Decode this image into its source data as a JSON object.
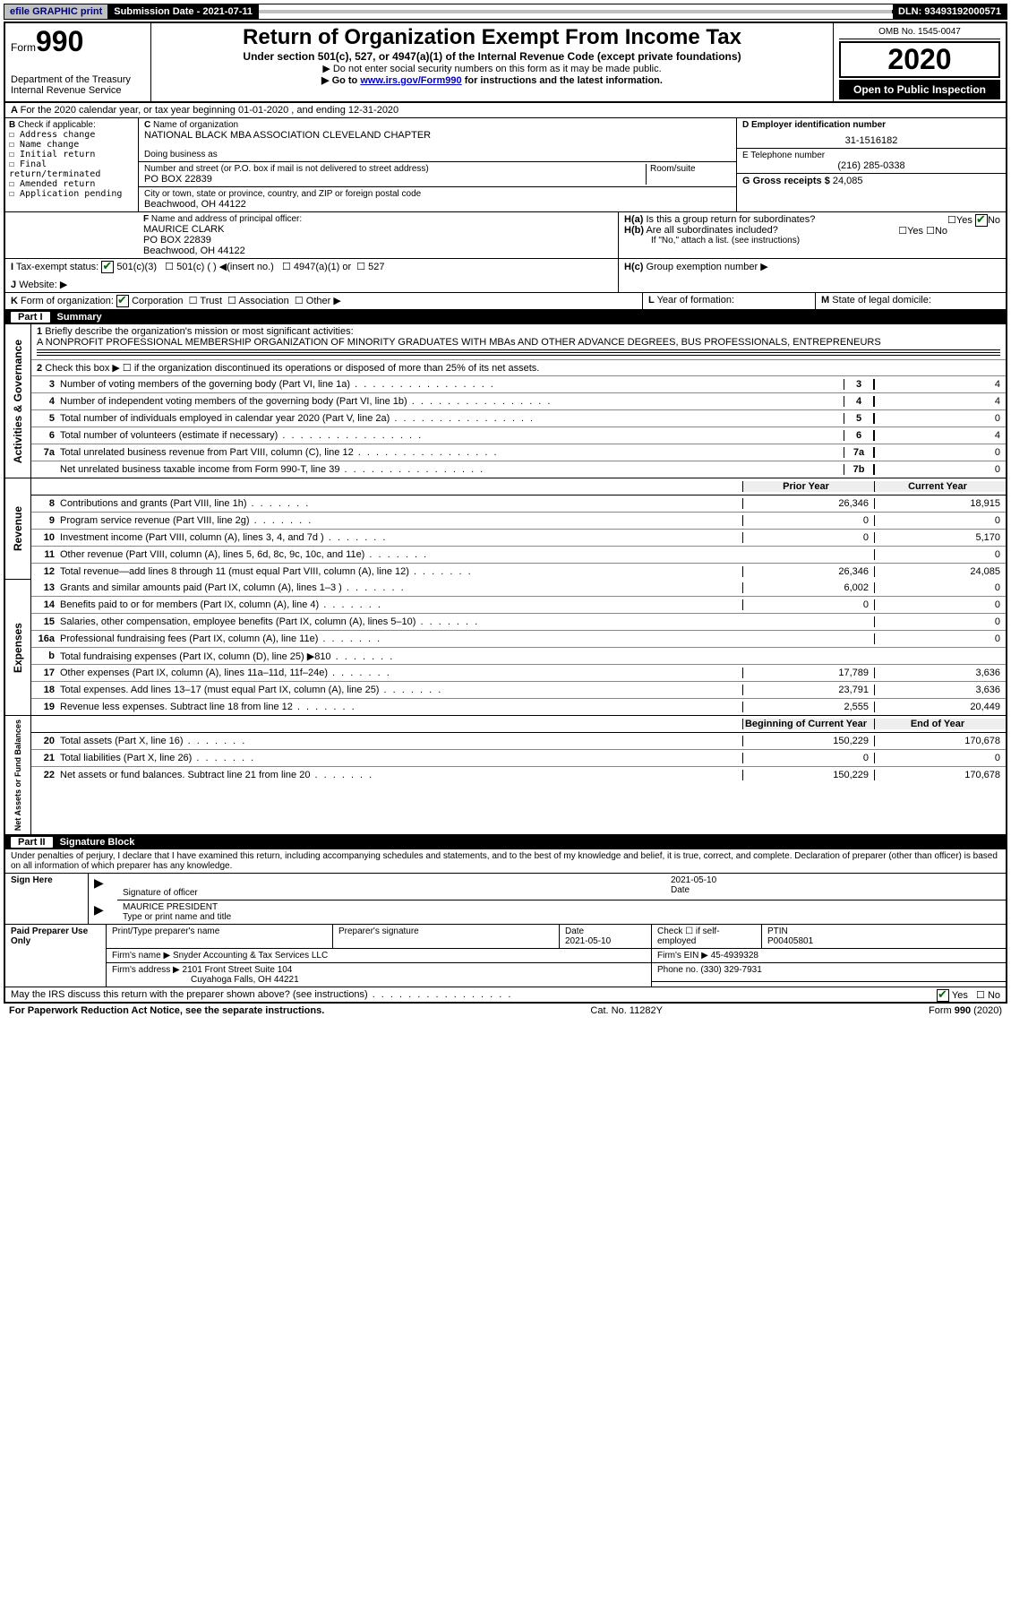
{
  "bar": {
    "efile": "efile GRAPHIC print",
    "sub_label": "Submission Date -",
    "sub_date": "2021-07-11",
    "dln": "DLN: 93493192000571"
  },
  "hdr": {
    "form": "Form",
    "form_no": "990",
    "dept": "Department of the Treasury\nInternal Revenue Service",
    "title": "Return of Organization Exempt From Income Tax",
    "under": "Under section 501(c), 527, or 4947(a)(1) of the Internal Revenue Code (except private foundations)",
    "ssn": "▶ Do not enter social security numbers on this form as it may be made public.",
    "goto_pre": "▶ Go to ",
    "goto_link": "www.irs.gov/Form990",
    "goto_post": " for instructions and the latest information.",
    "omb": "OMB No. 1545-0047",
    "year": "2020",
    "open": "Open to Public Inspection"
  },
  "A": "For the 2020 calendar year, or tax year beginning 01-01-2020    , and ending 12-31-2020",
  "B": {
    "label": "Check if applicable:",
    "items": [
      "Address change",
      "Name change",
      "Initial return",
      "Final return/terminated",
      "Amended return",
      "Application pending"
    ]
  },
  "C": {
    "name_lbl": "Name of organization",
    "name": "NATIONAL BLACK MBA ASSOCIATION CLEVELAND CHAPTER",
    "dba_lbl": "Doing business as",
    "addr_lbl": "Number and street (or P.O. box if mail is not delivered to street address)",
    "room_lbl": "Room/suite",
    "addr": "PO BOX 22839",
    "city_lbl": "City or town, state or province, country, and ZIP or foreign postal code",
    "city": "Beachwood, OH  44122"
  },
  "D": {
    "lbl": "D Employer identification number",
    "ein": "31-1516182"
  },
  "E": {
    "lbl": "E Telephone number",
    "tel": "(216) 285-0338"
  },
  "G": {
    "lbl": "G Gross receipts $",
    "amt": "24,085"
  },
  "F": {
    "lbl": "Name and address of principal officer:",
    "name": "MAURICE CLARK",
    "addr1": "PO BOX 22839",
    "addr2": "Beachwood, OH  44122"
  },
  "H": {
    "Ha": "Is this a group return for subordinates?",
    "Hb": "Are all subordinates included?",
    "Hb_note": "If \"No,\" attach a list. (see instructions)",
    "Hc": "Group exemption number ▶"
  },
  "I": {
    "lbl": "Tax-exempt status:",
    "c3": "501(c)(3)",
    "c": "501(c) (  ) ◀(insert no.)",
    "a1": "4947(a)(1) or",
    "s527": "527"
  },
  "J": "Website: ▶",
  "K": "Form of organization:",
  "K_opts": [
    "Corporation",
    "Trust",
    "Association",
    "Other ▶"
  ],
  "L": "Year of formation:",
  "M": "State of legal domicile:",
  "part1": {
    "num": "Part I",
    "title": "Summary"
  },
  "side": {
    "ag": "Activities & Governance",
    "rev": "Revenue",
    "exp": "Expenses",
    "net": "Net Assets or Fund Balances"
  },
  "l1": {
    "txt": "Briefly describe the organization's mission or most significant activities:",
    "desc": "A NONPROFIT PROFESSIONAL MEMBERSHIP ORGANIZATION OF MINORITY GRADUATES WITH MBAs AND OTHER ADVANCE DEGREES, BUS PROFESSIONALS, ENTREPRENEURS"
  },
  "l2": "Check this box ▶ ☐  if the organization discontinued its operations or disposed of more than 25% of its net assets.",
  "lines_ag": [
    {
      "n": "3",
      "t": "Number of voting members of the governing body (Part VI, line 1a)",
      "box": "3",
      "v": "4"
    },
    {
      "n": "4",
      "t": "Number of independent voting members of the governing body (Part VI, line 1b)",
      "box": "4",
      "v": "4"
    },
    {
      "n": "5",
      "t": "Total number of individuals employed in calendar year 2020 (Part V, line 2a)",
      "box": "5",
      "v": "0"
    },
    {
      "n": "6",
      "t": "Total number of volunteers (estimate if necessary)",
      "box": "6",
      "v": "4"
    },
    {
      "n": "7a",
      "t": "Total unrelated business revenue from Part VIII, column (C), line 12",
      "box": "7a",
      "v": "0"
    },
    {
      "n": "",
      "t": "Net unrelated business taxable income from Form 990-T, line 39",
      "box": "7b",
      "v": "0"
    }
  ],
  "colhdr": {
    "prior": "Prior Year",
    "curr": "Current Year"
  },
  "lines_rev": [
    {
      "n": "8",
      "t": "Contributions and grants (Part VIII, line 1h)",
      "p": "26,346",
      "c": "18,915"
    },
    {
      "n": "9",
      "t": "Program service revenue (Part VIII, line 2g)",
      "p": "0",
      "c": "0"
    },
    {
      "n": "10",
      "t": "Investment income (Part VIII, column (A), lines 3, 4, and 7d )",
      "p": "0",
      "c": "5,170"
    },
    {
      "n": "11",
      "t": "Other revenue (Part VIII, column (A), lines 5, 6d, 8c, 9c, 10c, and 11e)",
      "p": "",
      "c": "0"
    },
    {
      "n": "12",
      "t": "Total revenue—add lines 8 through 11 (must equal Part VIII, column (A), line 12)",
      "p": "26,346",
      "c": "24,085"
    }
  ],
  "lines_exp": [
    {
      "n": "13",
      "t": "Grants and similar amounts paid (Part IX, column (A), lines 1–3 )",
      "p": "6,002",
      "c": "0"
    },
    {
      "n": "14",
      "t": "Benefits paid to or for members (Part IX, column (A), line 4)",
      "p": "0",
      "c": "0"
    },
    {
      "n": "15",
      "t": "Salaries, other compensation, employee benefits (Part IX, column (A), lines 5–10)",
      "p": "",
      "c": "0"
    },
    {
      "n": "16a",
      "t": "Professional fundraising fees (Part IX, column (A), line 11e)",
      "p": "",
      "c": "0"
    },
    {
      "n": "b",
      "t": "Total fundraising expenses (Part IX, column (D), line 25) ▶810",
      "p": "SHADE",
      "c": "SHADE"
    },
    {
      "n": "17",
      "t": "Other expenses (Part IX, column (A), lines 11a–11d, 11f–24e)",
      "p": "17,789",
      "c": "3,636"
    },
    {
      "n": "18",
      "t": "Total expenses. Add lines 13–17 (must equal Part IX, column (A), line 25)",
      "p": "23,791",
      "c": "3,636"
    },
    {
      "n": "19",
      "t": "Revenue less expenses. Subtract line 18 from line 12",
      "p": "2,555",
      "c": "20,449"
    }
  ],
  "colhdr2": {
    "beg": "Beginning of Current Year",
    "end": "End of Year"
  },
  "lines_net": [
    {
      "n": "20",
      "t": "Total assets (Part X, line 16)",
      "p": "150,229",
      "c": "170,678"
    },
    {
      "n": "21",
      "t": "Total liabilities (Part X, line 26)",
      "p": "0",
      "c": "0"
    },
    {
      "n": "22",
      "t": "Net assets or fund balances. Subtract line 21 from line 20",
      "p": "150,229",
      "c": "170,678"
    }
  ],
  "part2": {
    "num": "Part II",
    "title": "Signature Block"
  },
  "perjury": "Under penalties of perjury, I declare that I have examined this return, including accompanying schedules and statements, and to the best of my knowledge and belief, it is true, correct, and complete. Declaration of preparer (other than officer) is based on all information of which preparer has any knowledge.",
  "sign": {
    "here": "Sign Here",
    "sig_lbl": "Signature of officer",
    "date_lbl": "Date",
    "date": "2021-05-10",
    "name": "MAURICE PRESIDENT",
    "name_lbl": "Type or print name and title"
  },
  "paid": {
    "lbl": "Paid Preparer Use Only",
    "pt_name_lbl": "Print/Type preparer's name",
    "sig_lbl": "Preparer's signature",
    "date_lbl": "Date",
    "date": "2021-05-10",
    "check_lbl": "Check ☐ if self-employed",
    "ptin_lbl": "PTIN",
    "ptin": "P00405801",
    "firm_name_lbl": "Firm's name    ▶",
    "firm_name": "Snyder Accounting & Tax Services LLC",
    "firm_ein_lbl": "Firm's EIN ▶",
    "firm_ein": "45-4939328",
    "firm_addr_lbl": "Firm's address ▶",
    "firm_addr1": "2101 Front Street Suite 104",
    "firm_addr2": "Cuyahoga Falls, OH  44221",
    "phone_lbl": "Phone no.",
    "phone": "(330) 329-7931"
  },
  "discuss": "May the IRS discuss this return with the preparer shown above? (see instructions)",
  "yn": {
    "yes": "Yes",
    "no": "No"
  },
  "footer": {
    "pra": "For Paperwork Reduction Act Notice, see the separate instructions.",
    "cat": "Cat. No. 11282Y",
    "form": "Form 990 (2020)"
  }
}
